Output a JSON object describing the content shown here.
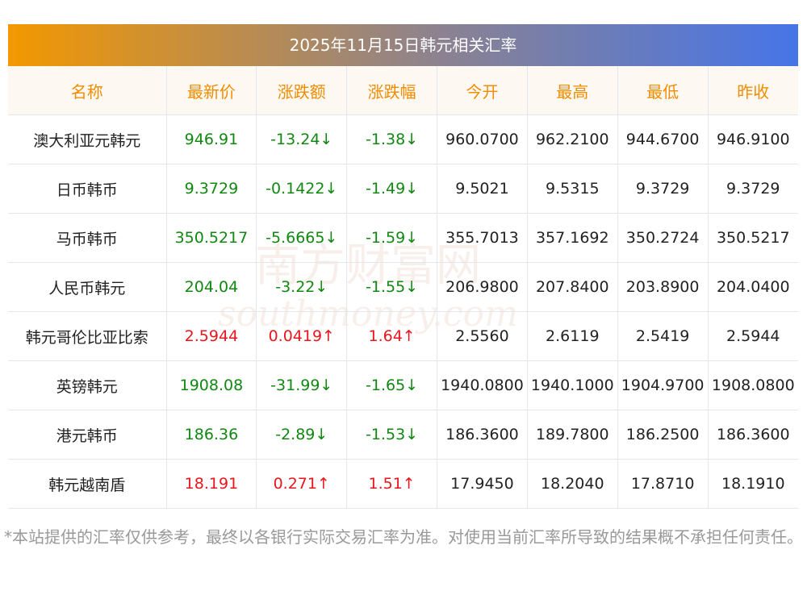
{
  "title": "2025年11月15日韩元相关汇率",
  "headers": [
    "名称",
    "最新价",
    "涨跌额",
    "涨跌幅",
    "今开",
    "最高",
    "最低",
    "昨收"
  ],
  "rows": [
    {
      "name": "澳大利亚元韩元",
      "price": "946.91",
      "change": "-13.24↓",
      "pct": "-1.38↓",
      "open": "960.0700",
      "high": "962.2100",
      "low": "944.6700",
      "prev": "946.9100",
      "dir": "down"
    },
    {
      "name": "日币韩币",
      "price": "9.3729",
      "change": "-0.1422↓",
      "pct": "-1.49↓",
      "open": "9.5021",
      "high": "9.5315",
      "low": "9.3729",
      "prev": "9.3729",
      "dir": "down"
    },
    {
      "name": "马币韩币",
      "price": "350.5217",
      "change": "-5.6665↓",
      "pct": "-1.59↓",
      "open": "355.7013",
      "high": "357.1692",
      "low": "350.2724",
      "prev": "350.5217",
      "dir": "down"
    },
    {
      "name": "人民币韩元",
      "price": "204.04",
      "change": "-3.22↓",
      "pct": "-1.55↓",
      "open": "206.9800",
      "high": "207.8400",
      "low": "203.8900",
      "prev": "204.0400",
      "dir": "down"
    },
    {
      "name": "韩元哥伦比亚比索",
      "price": "2.5944",
      "change": "0.0419↑",
      "pct": "1.64↑",
      "open": "2.5560",
      "high": "2.6119",
      "low": "2.5419",
      "prev": "2.5944",
      "dir": "up"
    },
    {
      "name": "英镑韩元",
      "price": "1908.08",
      "change": "-31.99↓",
      "pct": "-1.65↓",
      "open": "1940.0800",
      "high": "1940.1000",
      "low": "1904.9700",
      "prev": "1908.0800",
      "dir": "down"
    },
    {
      "name": "港元韩币",
      "price": "186.36",
      "change": "-2.89↓",
      "pct": "-1.53↓",
      "open": "186.3600",
      "high": "189.7800",
      "low": "186.2500",
      "prev": "186.3600",
      "dir": "down"
    },
    {
      "name": "韩元越南盾",
      "price": "18.191",
      "change": "0.271↑",
      "pct": "1.51↑",
      "open": "17.9450",
      "high": "18.2040",
      "low": "17.8710",
      "prev": "18.1910",
      "dir": "up"
    }
  ],
  "watermark": {
    "cn": "南方财富网",
    "en": "southmoney.com"
  },
  "note": "*本站提供的汇率仅供参考，最终以各银行实际交易汇率为准。对使用当前汇率所导致的结果概不承担任何责任。",
  "colors": {
    "up": "#e8161d",
    "down": "#118811",
    "header": "#f08c00"
  }
}
